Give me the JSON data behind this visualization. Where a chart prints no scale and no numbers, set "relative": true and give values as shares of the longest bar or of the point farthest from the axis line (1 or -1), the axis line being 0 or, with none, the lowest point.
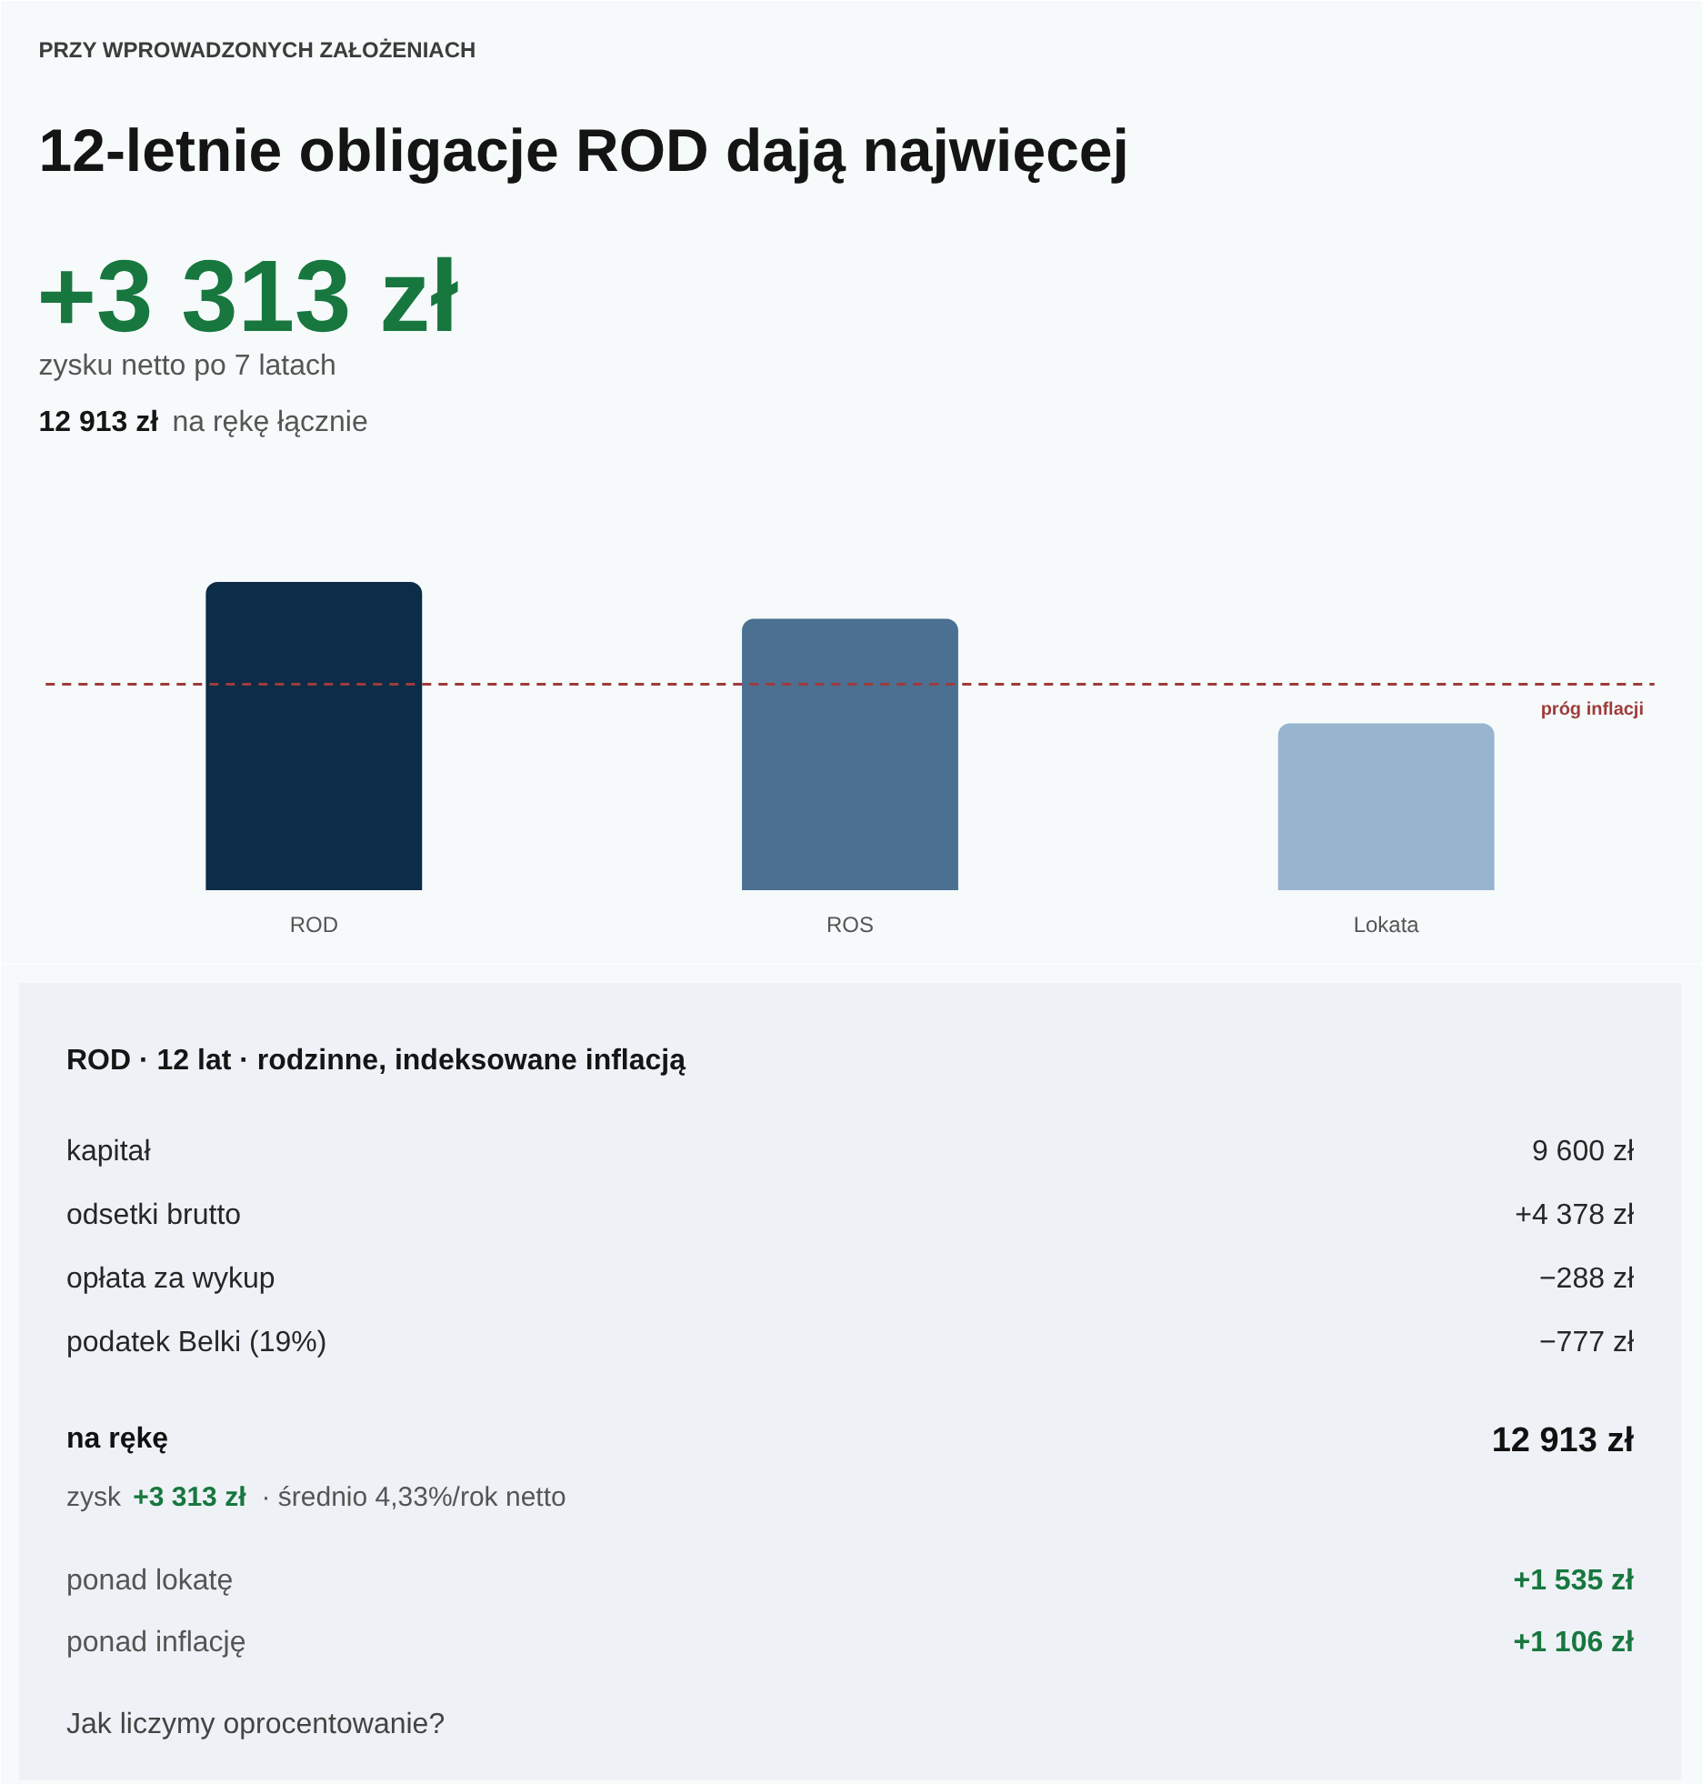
{
  "chart_data": [
    {
      "type": "bar",
      "subtitle": "PRZY WPROWADZONYCH ZAŁOŻENIACH",
      "title": "12-letnie obligacje ROD dają najwięcej",
      "annotations": [
        "+3 313 zł",
        "zysku netto po 7 latach",
        "12 913 zł",
        "na rękę łącznie"
      ],
      "categories": [
        "ROD",
        "ROS",
        "Lokata"
      ],
      "values": [
        1,
        0.88,
        0.54
      ],
      "colors": [
        "#0c2c48",
        "#4b7092",
        "#97b5cf"
      ],
      "relative": true,
      "ref_lines": [
        {
          "axis": "y",
          "value": 0.67,
          "label": "próg inflacji",
          "color": "#9e3b3b",
          "line_style": "dashed"
        }
      ]
    },
    {
      "type": "other",
      "title": "ROD · 12 lat · rodzinne, indeksowane inflacją",
      "annotations": [
        "kapitał",
        "9 600 zł",
        "odsetki brutto",
        "+4 378 zł",
        "opłata za wykup",
        "−288 zł",
        "podatek Belki (19%)",
        "−777 zł",
        "na rękę",
        "12 913 zł",
        "zysk",
        "+3 313 zł",
        "· średnio 4,33%/rok netto",
        "ponad lokatę",
        "+1 535 zł",
        "ponad inflację",
        "+1 106 zł",
        "Jak liczymy oprocentowanie?"
      ]
    }
  ]
}
